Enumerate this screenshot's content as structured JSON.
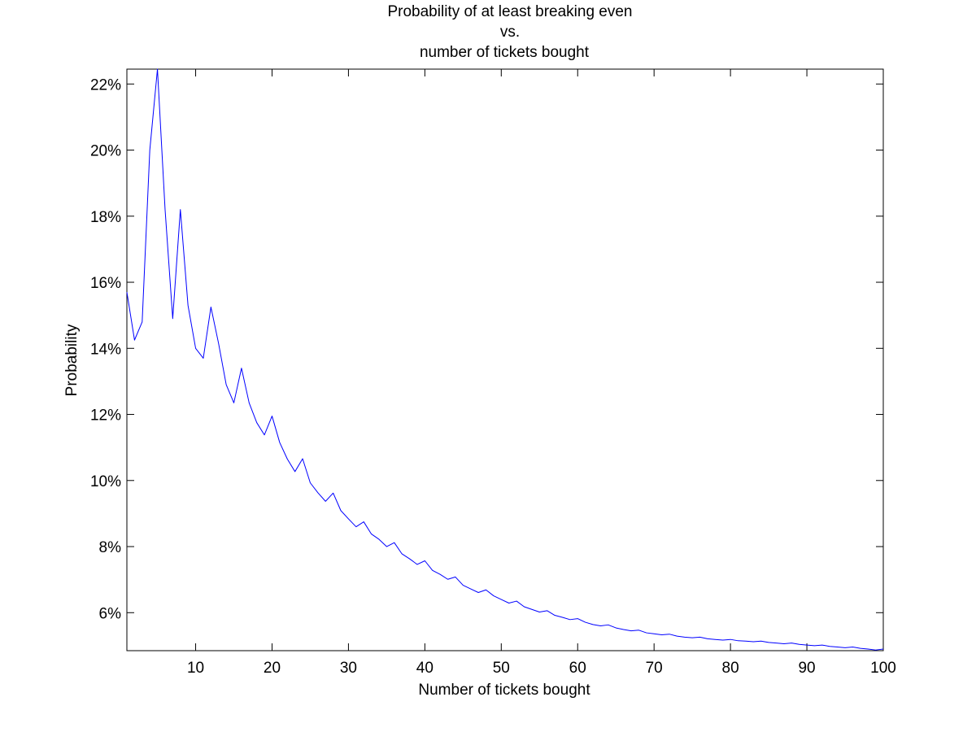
{
  "chart_data": {
    "type": "line",
    "title_lines": [
      "Probability of at least breaking even",
      "vs.",
      "number of tickets bought"
    ],
    "xlabel": "Number of tickets bought",
    "ylabel": "Probability",
    "xlim": [
      1,
      100
    ],
    "ylim": [
      0.0485,
      0.2245
    ],
    "x_ticks": [
      10,
      20,
      30,
      40,
      50,
      60,
      70,
      80,
      90,
      100
    ],
    "x_tick_labels": [
      "10",
      "20",
      "30",
      "40",
      "50",
      "60",
      "70",
      "80",
      "90",
      "100"
    ],
    "y_ticks": [
      0.06,
      0.08,
      0.1,
      0.12,
      0.14,
      0.16,
      0.18,
      0.2,
      0.22
    ],
    "y_tick_labels": [
      "6%",
      "8%",
      "10%",
      "12%",
      "14%",
      "16%",
      "18%",
      "20%",
      "22%"
    ],
    "grid": false,
    "line_color": "#0000ff",
    "series": [
      {
        "x": [
          1,
          2,
          3,
          4,
          5,
          6,
          7,
          8,
          9,
          10,
          11,
          12,
          13,
          14,
          15,
          16,
          17,
          18,
          19,
          20,
          21,
          22,
          23,
          24,
          25,
          26,
          27,
          28,
          29,
          30,
          31,
          32,
          33,
          34,
          35,
          36,
          37,
          38,
          39,
          40,
          41,
          42,
          43,
          44,
          45,
          46,
          47,
          48,
          49,
          50,
          51,
          52,
          53,
          54,
          55,
          56,
          57,
          58,
          59,
          60,
          61,
          62,
          63,
          64,
          65,
          66,
          67,
          68,
          69,
          70,
          71,
          72,
          73,
          74,
          75,
          76,
          77,
          78,
          79,
          80,
          81,
          82,
          83,
          84,
          85,
          86,
          87,
          88,
          89,
          90,
          91,
          92,
          93,
          94,
          95,
          96,
          97,
          98,
          99,
          100
        ],
        "values": [
          0.157,
          0.1425,
          0.148,
          0.2,
          0.2245,
          0.182,
          0.149,
          0.182,
          0.153,
          0.14,
          0.137,
          0.1525,
          0.1415,
          0.129,
          0.1235,
          0.134,
          0.1235,
          0.1175,
          0.1138,
          0.1195,
          0.1115,
          0.1065,
          0.1027,
          0.1066,
          0.0993,
          0.0963,
          0.0937,
          0.0962,
          0.0909,
          0.0884,
          0.086,
          0.0875,
          0.0838,
          0.0822,
          0.08,
          0.0812,
          0.0778,
          0.0763,
          0.0746,
          0.0757,
          0.0728,
          0.0716,
          0.0701,
          0.0708,
          0.0683,
          0.0672,
          0.0661,
          0.0669,
          0.0651,
          0.064,
          0.0629,
          0.0635,
          0.0618,
          0.061,
          0.0602,
          0.0606,
          0.0592,
          0.0586,
          0.0579,
          0.0582,
          0.0571,
          0.0564,
          0.056,
          0.0563,
          0.0554,
          0.0549,
          0.0545,
          0.0547,
          0.0539,
          0.0536,
          0.0533,
          0.0535,
          0.0529,
          0.0526,
          0.0524,
          0.0526,
          0.0521,
          0.0519,
          0.0517,
          0.0519,
          0.0515,
          0.0514,
          0.0512,
          0.0514,
          0.051,
          0.0508,
          0.0506,
          0.0508,
          0.0504,
          0.0502,
          0.05,
          0.0502,
          0.0498,
          0.0496,
          0.0494,
          0.0496,
          0.0492,
          0.049,
          0.0487,
          0.049
        ]
      }
    ]
  }
}
